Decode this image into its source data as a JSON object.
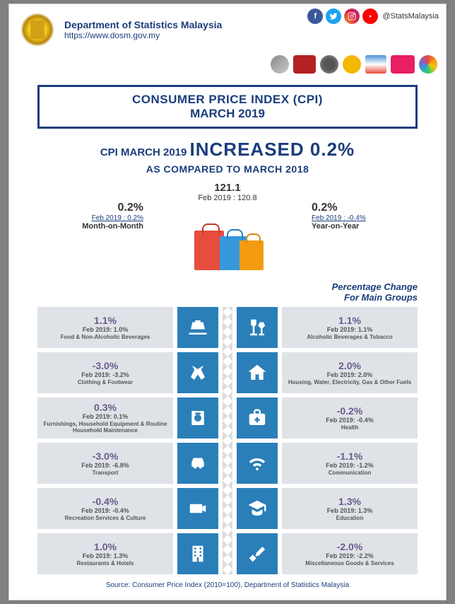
{
  "header": {
    "dept_name": "Department of Statistics Malaysia",
    "url": "https://www.dosm.gov.my",
    "handle": "@StatsMalaysia"
  },
  "title": {
    "l1": "CONSUMER PRICE INDEX (CPI)",
    "l2": "MARCH 2019"
  },
  "headline": {
    "prefix": "CPI MARCH 2019 ",
    "big": "INCREASED 0.2%",
    "sub": "AS COMPARED TO MARCH 2018"
  },
  "index": {
    "value": "121.1",
    "prev": "Feb 2019 : 120.8"
  },
  "mom": {
    "pct": "0.2%",
    "prev": "Feb 2019 : 0.2%",
    "label": "Month-on-Month"
  },
  "yoy": {
    "pct": "0.2%",
    "prev": "Feb 2019 : -0.4%",
    "label": "Year-on-Year"
  },
  "pct_change_label": "Percentage Change\nFor Main Groups",
  "groups_left": [
    {
      "pct": "1.1%",
      "prev": "Feb 2019: 1.0%",
      "name": "Food & Non-Alcoholic Beverages",
      "icon": "food"
    },
    {
      "pct": "-3.0%",
      "prev": "Feb 2019: -3.2%",
      "name": "Clothing & Footwear",
      "icon": "clothing"
    },
    {
      "pct": "0.3%",
      "prev": "Feb 2019: 0.1%",
      "name": "Furnishings, Household Equipment & Routine Household Maintenance",
      "icon": "furnish"
    },
    {
      "pct": "-3.0%",
      "prev": "Feb 2019: -6.8%",
      "name": "Transport",
      "icon": "car"
    },
    {
      "pct": "-0.4%",
      "prev": "Feb 2019: -0.4%",
      "name": "Recreation Services & Culture",
      "icon": "camera"
    },
    {
      "pct": "1.0%",
      "prev": "Feb 2019: 1.3%",
      "name": "Restaurants & Hotels",
      "icon": "hotel"
    }
  ],
  "groups_right": [
    {
      "pct": "1.1%",
      "prev": "Feb 2019: 1.1%",
      "name": "Alcoholic Beverages & Tobacco",
      "icon": "alcohol"
    },
    {
      "pct": "2.0%",
      "prev": "Feb 2019: 2.0%",
      "name": "Housing, Water, Electricity, Gas & Other Fuels",
      "icon": "house"
    },
    {
      "pct": "-0.2%",
      "prev": "Feb 2019: -0.4%",
      "name": "Health",
      "icon": "health"
    },
    {
      "pct": "-1.1%",
      "prev": "Feb 2019: -1.2%",
      "name": "Communication",
      "icon": "wifi"
    },
    {
      "pct": "1.3%",
      "prev": "Feb 2019: 1.3%",
      "name": "Education",
      "icon": "edu"
    },
    {
      "pct": "-2.0%",
      "prev": "Feb 2019: -2.2%",
      "name": "Miscellaneous Goods & Services",
      "icon": "misc"
    }
  ],
  "source": "Source: Consumer Price Index (2010=100), Department of Statistics Malaysia",
  "colors": {
    "primary": "#1a3d7c",
    "icon_bg": "#2a7fb8",
    "card_bg": "#dfe3e8",
    "pct_color": "#6a5a8c"
  }
}
